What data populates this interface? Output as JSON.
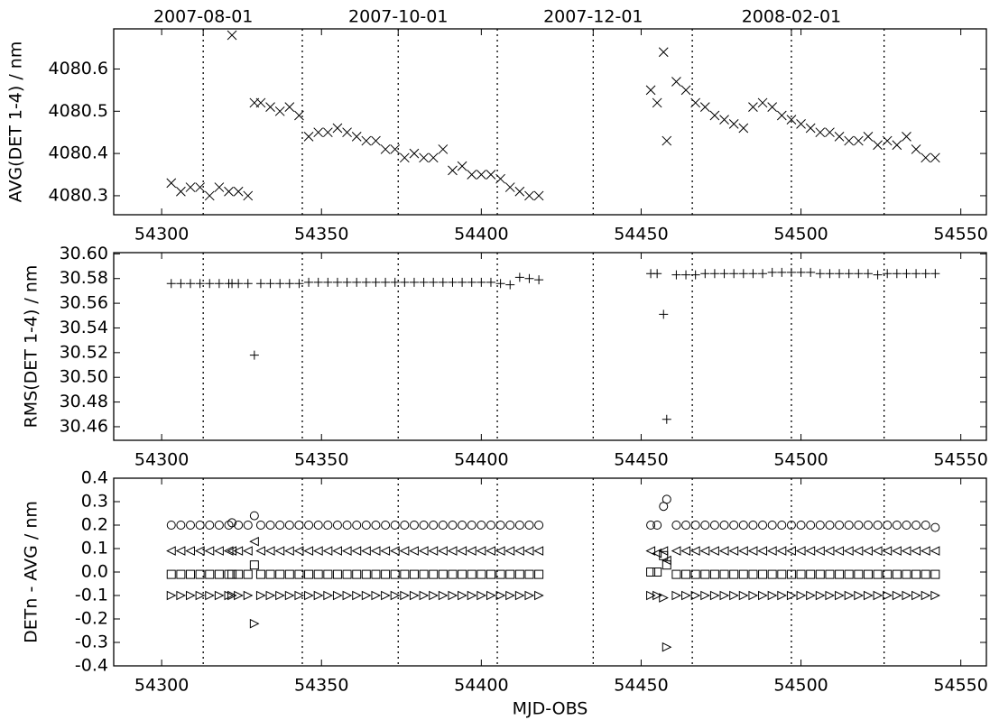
{
  "chart_data": [
    {
      "type": "scatter",
      "ylabel": "AVG(DET 1-4) / nm",
      "x2ticks": [
        {
          "value": 54313,
          "label": "2007-08-01"
        },
        {
          "value": 54374,
          "label": "2007-10-01"
        },
        {
          "value": 54435,
          "label": "2007-12-01"
        },
        {
          "value": 54497,
          "label": "2008-02-01"
        }
      ],
      "vlines": [
        54313,
        54344,
        54374,
        54405,
        54435,
        54466,
        54497,
        54526
      ],
      "xlim": [
        54285,
        54558
      ],
      "xticks": [
        54300,
        54350,
        54400,
        54450,
        54500,
        54550
      ],
      "ylim": [
        4080.255,
        4080.695
      ],
      "yticks": [
        4080.3,
        4080.4,
        4080.5,
        4080.6
      ],
      "x": [
        54303,
        54306,
        54309,
        54312,
        54315,
        54318,
        54321,
        54322,
        54324,
        54327,
        54329,
        54331,
        54334,
        54337,
        54340,
        54343,
        54346,
        54349,
        54352,
        54355,
        54358,
        54361,
        54364,
        54367,
        54370,
        54373,
        54376,
        54379,
        54382,
        54385,
        54388,
        54391,
        54394,
        54397,
        54400,
        54403,
        54406,
        54409,
        54412,
        54415,
        54418,
        54453,
        54455,
        54457,
        54458,
        54461,
        54464,
        54467,
        54470,
        54473,
        54476,
        54479,
        54482,
        54485,
        54488,
        54491,
        54494,
        54497,
        54500,
        54503,
        54506,
        54509,
        54512,
        54515,
        54518,
        54521,
        54524,
        54527,
        54530,
        54533,
        54536,
        54539,
        54542
      ],
      "series": [
        {
          "marker": "x",
          "color": "#000000",
          "values": [
            4080.33,
            4080.31,
            4080.32,
            4080.32,
            4080.3,
            4080.32,
            4080.31,
            4080.68,
            4080.31,
            4080.3,
            4080.52,
            4080.52,
            4080.51,
            4080.5,
            4080.51,
            4080.49,
            4080.44,
            4080.45,
            4080.45,
            4080.46,
            4080.45,
            4080.44,
            4080.43,
            4080.43,
            4080.41,
            4080.41,
            4080.39,
            4080.4,
            4080.39,
            4080.39,
            4080.41,
            4080.36,
            4080.37,
            4080.35,
            4080.35,
            4080.35,
            4080.34,
            4080.32,
            4080.31,
            4080.3,
            4080.3,
            4080.55,
            4080.52,
            4080.64,
            4080.43,
            4080.57,
            4080.55,
            4080.52,
            4080.51,
            4080.49,
            4080.48,
            4080.47,
            4080.46,
            4080.51,
            4080.52,
            4080.51,
            4080.49,
            4080.48,
            4080.47,
            4080.46,
            4080.45,
            4080.45,
            4080.44,
            4080.43,
            4080.43,
            4080.44,
            4080.42,
            4080.43,
            4080.42,
            4080.44,
            4080.41,
            4080.39,
            4080.39
          ]
        }
      ]
    },
    {
      "type": "scatter",
      "ylabel": "RMS(DET 1-4) / nm",
      "vlines": [
        54313,
        54344,
        54374,
        54405,
        54435,
        54466,
        54497,
        54526
      ],
      "xlim": [
        54285,
        54558
      ],
      "xticks": [
        54300,
        54350,
        54400,
        54450,
        54500,
        54550
      ],
      "ylim": [
        30.449,
        30.601
      ],
      "yticks": [
        {
          "value": 30.46,
          "label": "30.46"
        },
        {
          "value": 30.48,
          "label": "30.48"
        },
        {
          "value": 30.5,
          "label": "30.50"
        },
        {
          "value": 30.52,
          "label": "30.52"
        },
        {
          "value": 30.54,
          "label": "30.54"
        },
        {
          "value": 30.56,
          "label": "30.56"
        },
        {
          "value": 30.58,
          "label": "30.58"
        },
        {
          "value": 30.6,
          "label": "30.60"
        }
      ],
      "x": [
        54303,
        54306,
        54309,
        54312,
        54315,
        54318,
        54321,
        54322,
        54324,
        54327,
        54329,
        54331,
        54334,
        54337,
        54340,
        54343,
        54346,
        54349,
        54352,
        54355,
        54358,
        54361,
        54364,
        54367,
        54370,
        54373,
        54376,
        54379,
        54382,
        54385,
        54388,
        54391,
        54394,
        54397,
        54400,
        54403,
        54406,
        54409,
        54412,
        54415,
        54418,
        54453,
        54455,
        54457,
        54458,
        54461,
        54464,
        54467,
        54470,
        54473,
        54476,
        54479,
        54482,
        54485,
        54488,
        54491,
        54494,
        54497,
        54500,
        54503,
        54506,
        54509,
        54512,
        54515,
        54518,
        54521,
        54524,
        54527,
        54530,
        54533,
        54536,
        54539,
        54542
      ],
      "series": [
        {
          "marker": "+",
          "color": "#000000",
          "values": [
            30.576,
            30.576,
            30.576,
            30.576,
            30.576,
            30.576,
            30.576,
            30.576,
            30.576,
            30.576,
            30.518,
            30.576,
            30.576,
            30.576,
            30.576,
            30.576,
            30.577,
            30.577,
            30.577,
            30.577,
            30.577,
            30.577,
            30.577,
            30.577,
            30.577,
            30.577,
            30.577,
            30.577,
            30.577,
            30.577,
            30.577,
            30.577,
            30.577,
            30.577,
            30.577,
            30.577,
            30.576,
            30.575,
            30.581,
            30.58,
            30.579,
            30.584,
            30.584,
            30.551,
            30.466,
            30.583,
            30.583,
            30.583,
            30.584,
            30.584,
            30.584,
            30.584,
            30.584,
            30.584,
            30.584,
            30.585,
            30.585,
            30.585,
            30.585,
            30.585,
            30.584,
            30.584,
            30.584,
            30.584,
            30.584,
            30.584,
            30.583,
            30.584,
            30.584,
            30.584,
            30.584,
            30.584,
            30.584
          ]
        }
      ]
    },
    {
      "type": "scatter",
      "ylabel": "DETn - AVG / nm",
      "xlabel": "MJD-OBS",
      "vlines": [
        54313,
        54344,
        54374,
        54405,
        54435,
        54466,
        54497,
        54526
      ],
      "xlim": [
        54285,
        54558
      ],
      "xticks": [
        54300,
        54350,
        54400,
        54450,
        54500,
        54550
      ],
      "ylim": [
        -0.4,
        0.4
      ],
      "yticks": [
        -0.4,
        -0.3,
        -0.2,
        -0.1,
        {
          "value": 0,
          "label": "0.0"
        },
        0.1,
        0.2,
        0.3,
        0.4
      ],
      "x": [
        54303,
        54306,
        54309,
        54312,
        54315,
        54318,
        54321,
        54322,
        54324,
        54327,
        54329,
        54331,
        54334,
        54337,
        54340,
        54343,
        54346,
        54349,
        54352,
        54355,
        54358,
        54361,
        54364,
        54367,
        54370,
        54373,
        54376,
        54379,
        54382,
        54385,
        54388,
        54391,
        54394,
        54397,
        54400,
        54403,
        54406,
        54409,
        54412,
        54415,
        54418,
        54453,
        54455,
        54457,
        54458,
        54461,
        54464,
        54467,
        54470,
        54473,
        54476,
        54479,
        54482,
        54485,
        54488,
        54491,
        54494,
        54497,
        54500,
        54503,
        54506,
        54509,
        54512,
        54515,
        54518,
        54521,
        54524,
        54527,
        54530,
        54533,
        54536,
        54539,
        54542
      ],
      "series": [
        {
          "marker": "circle",
          "color": "#000000",
          "values": [
            0.2,
            0.2,
            0.2,
            0.2,
            0.2,
            0.2,
            0.2,
            0.21,
            0.2,
            0.2,
            0.24,
            0.2,
            0.2,
            0.2,
            0.2,
            0.2,
            0.2,
            0.2,
            0.2,
            0.2,
            0.2,
            0.2,
            0.2,
            0.2,
            0.2,
            0.2,
            0.2,
            0.2,
            0.2,
            0.2,
            0.2,
            0.2,
            0.2,
            0.2,
            0.2,
            0.2,
            0.2,
            0.2,
            0.2,
            0.2,
            0.2,
            0.2,
            0.2,
            0.28,
            0.31,
            0.2,
            0.2,
            0.2,
            0.2,
            0.2,
            0.2,
            0.2,
            0.2,
            0.2,
            0.2,
            0.2,
            0.2,
            0.2,
            0.2,
            0.2,
            0.2,
            0.2,
            0.2,
            0.2,
            0.2,
            0.2,
            0.2,
            0.2,
            0.2,
            0.2,
            0.2,
            0.2,
            0.19
          ]
        },
        {
          "marker": "triangle-left",
          "color": "#000000",
          "values": [
            0.09,
            0.09,
            0.09,
            0.09,
            0.09,
            0.09,
            0.09,
            0.09,
            0.09,
            0.09,
            0.13,
            0.09,
            0.09,
            0.09,
            0.09,
            0.09,
            0.09,
            0.09,
            0.09,
            0.09,
            0.09,
            0.09,
            0.09,
            0.09,
            0.09,
            0.09,
            0.09,
            0.09,
            0.09,
            0.09,
            0.09,
            0.09,
            0.09,
            0.09,
            0.09,
            0.09,
            0.09,
            0.09,
            0.09,
            0.09,
            0.09,
            0.09,
            0.08,
            0.09,
            0.05,
            0.09,
            0.09,
            0.09,
            0.09,
            0.09,
            0.09,
            0.09,
            0.09,
            0.09,
            0.09,
            0.09,
            0.09,
            0.09,
            0.09,
            0.09,
            0.09,
            0.09,
            0.09,
            0.09,
            0.09,
            0.09,
            0.09,
            0.09,
            0.09,
            0.09,
            0.09,
            0.09,
            0.09
          ]
        },
        {
          "marker": "square",
          "color": "#000000",
          "values": [
            -0.01,
            -0.01,
            -0.01,
            -0.01,
            -0.01,
            -0.01,
            -0.01,
            -0.01,
            -0.01,
            -0.01,
            0.03,
            -0.01,
            -0.01,
            -0.01,
            -0.01,
            -0.01,
            -0.01,
            -0.01,
            -0.01,
            -0.01,
            -0.01,
            -0.01,
            -0.01,
            -0.01,
            -0.01,
            -0.01,
            -0.01,
            -0.01,
            -0.01,
            -0.01,
            -0.01,
            -0.01,
            -0.01,
            -0.01,
            -0.01,
            -0.01,
            -0.01,
            -0.01,
            -0.01,
            -0.01,
            -0.01,
            0,
            0,
            0.07,
            0.03,
            -0.01,
            -0.01,
            -0.01,
            -0.01,
            -0.01,
            -0.01,
            -0.01,
            -0.01,
            -0.01,
            -0.01,
            -0.01,
            -0.01,
            -0.01,
            -0.01,
            -0.01,
            -0.01,
            -0.01,
            -0.01,
            -0.01,
            -0.01,
            -0.01,
            -0.01,
            -0.01,
            -0.01,
            -0.01,
            -0.01,
            -0.01,
            -0.01
          ]
        },
        {
          "marker": "triangle-right",
          "color": "#000000",
          "values": [
            -0.1,
            -0.1,
            -0.1,
            -0.1,
            -0.1,
            -0.1,
            -0.1,
            -0.1,
            -0.1,
            -0.1,
            -0.22,
            -0.1,
            -0.1,
            -0.1,
            -0.1,
            -0.1,
            -0.1,
            -0.1,
            -0.1,
            -0.1,
            -0.1,
            -0.1,
            -0.1,
            -0.1,
            -0.1,
            -0.1,
            -0.1,
            -0.1,
            -0.1,
            -0.1,
            -0.1,
            -0.1,
            -0.1,
            -0.1,
            -0.1,
            -0.1,
            -0.1,
            -0.1,
            -0.1,
            -0.1,
            -0.1,
            -0.1,
            -0.1,
            -0.11,
            -0.32,
            -0.1,
            -0.1,
            -0.1,
            -0.1,
            -0.1,
            -0.1,
            -0.1,
            -0.1,
            -0.1,
            -0.1,
            -0.1,
            -0.1,
            -0.1,
            -0.1,
            -0.1,
            -0.1,
            -0.1,
            -0.1,
            -0.1,
            -0.1,
            -0.1,
            -0.1,
            -0.1,
            -0.1,
            -0.1,
            -0.1,
            -0.1,
            -0.1
          ]
        }
      ]
    }
  ]
}
